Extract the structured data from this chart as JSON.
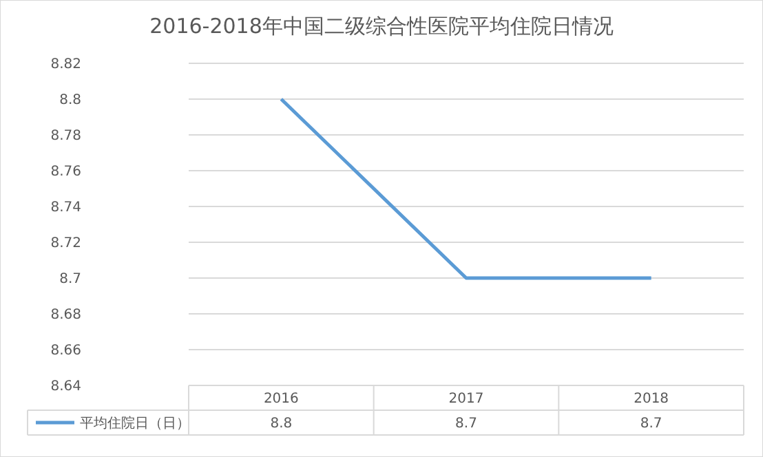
{
  "chart_data": {
    "type": "line",
    "title": "2016-2018年中国二级综合性医院平均住院日情况",
    "categories": [
      "2016",
      "2017",
      "2018"
    ],
    "series": [
      {
        "name": "平均住院日（日）",
        "color": "#5b9bd5",
        "values": [
          8.8,
          8.7,
          8.7
        ]
      }
    ],
    "ylim": [
      8.64,
      8.82
    ],
    "yticks": [
      8.64,
      8.66,
      8.68,
      8.7,
      8.72,
      8.74,
      8.76,
      8.78,
      8.8,
      8.82
    ],
    "grid": "y",
    "legend": "bottom",
    "data_labels": true,
    "marker": "none",
    "line_style": "solid"
  }
}
